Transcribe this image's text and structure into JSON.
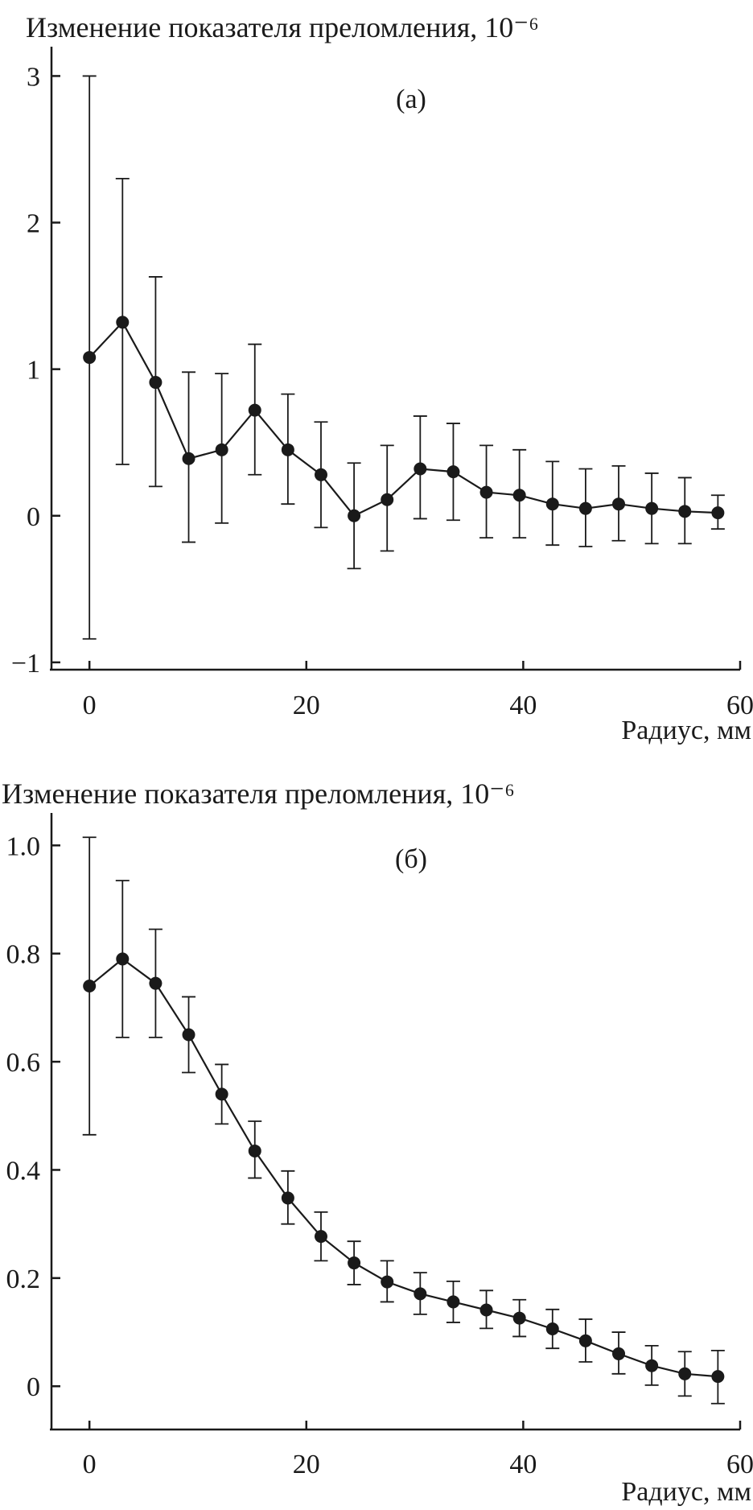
{
  "chart_data": [
    {
      "type": "line",
      "title": "Изменение показателя преломления, 10⁻⁶",
      "panel_label": "(а)",
      "xlabel": "Радиус, мм",
      "ylabel": "",
      "xlim": [
        -3.5,
        60
      ],
      "ylim": [
        -1.05,
        3.2
      ],
      "x_ticks": [
        0,
        20,
        40,
        60
      ],
      "x_tick_labels": [
        "0",
        "20",
        "40",
        "60"
      ],
      "y_ticks": [
        3,
        2,
        1,
        0,
        -1
      ],
      "y_tick_labels": [
        "3",
        "2",
        "1",
        "0",
        "−1"
      ],
      "grid": false,
      "series": [
        {
          "name": "(а)",
          "x": [
            0,
            3.05,
            6.1,
            9.15,
            12.2,
            15.25,
            18.3,
            21.35,
            24.4,
            27.45,
            30.5,
            33.55,
            36.6,
            39.65,
            42.7,
            45.75,
            48.8,
            51.85,
            54.9,
            57.95
          ],
          "values": [
            1.08,
            1.32,
            0.91,
            0.39,
            0.45,
            0.72,
            0.45,
            0.28,
            0.0,
            0.11,
            0.32,
            0.3,
            0.16,
            0.14,
            0.08,
            0.05,
            0.08,
            0.05,
            0.03,
            0.02
          ],
          "err_low": [
            -0.84,
            0.35,
            0.2,
            -0.18,
            -0.05,
            0.28,
            0.08,
            -0.08,
            -0.36,
            -0.24,
            -0.02,
            -0.03,
            -0.15,
            -0.15,
            -0.2,
            -0.21,
            -0.17,
            -0.19,
            -0.19,
            -0.09
          ],
          "err_high": [
            3.0,
            2.3,
            1.63,
            0.98,
            0.97,
            1.17,
            0.83,
            0.64,
            0.36,
            0.48,
            0.68,
            0.63,
            0.48,
            0.45,
            0.37,
            0.32,
            0.34,
            0.29,
            0.26,
            0.14
          ]
        }
      ]
    },
    {
      "type": "line",
      "title": "Изменение показателя преломления, 10⁻⁶",
      "panel_label": "(б)",
      "xlabel": "Радиус, мм",
      "ylabel": "",
      "xlim": [
        -3.5,
        60
      ],
      "ylim": [
        -0.08,
        1.06
      ],
      "x_ticks": [
        0,
        20,
        40,
        60
      ],
      "x_tick_labels": [
        "0",
        "20",
        "40",
        "60"
      ],
      "y_ticks": [
        1.0,
        0.8,
        0.6,
        0.4,
        0.2,
        0
      ],
      "y_tick_labels": [
        "1.0",
        "0.8",
        "0.6",
        "0.4",
        "0.2",
        "0"
      ],
      "grid": false,
      "series": [
        {
          "name": "(б)",
          "x": [
            0,
            3.05,
            6.1,
            9.15,
            12.2,
            15.25,
            18.3,
            21.35,
            24.4,
            27.45,
            30.5,
            33.55,
            36.6,
            39.65,
            42.7,
            45.75,
            48.8,
            51.85,
            54.9,
            57.95
          ],
          "values": [
            0.74,
            0.79,
            0.745,
            0.65,
            0.54,
            0.435,
            0.348,
            0.277,
            0.228,
            0.193,
            0.171,
            0.156,
            0.141,
            0.126,
            0.106,
            0.084,
            0.06,
            0.038,
            0.023,
            0.018
          ],
          "err_low": [
            0.465,
            0.645,
            0.645,
            0.58,
            0.485,
            0.385,
            0.3,
            0.232,
            0.188,
            0.156,
            0.133,
            0.118,
            0.107,
            0.092,
            0.07,
            0.045,
            0.023,
            0.002,
            -0.018,
            -0.032
          ],
          "err_high": [
            1.015,
            0.935,
            0.845,
            0.72,
            0.595,
            0.49,
            0.398,
            0.322,
            0.268,
            0.232,
            0.21,
            0.194,
            0.177,
            0.16,
            0.142,
            0.124,
            0.1,
            0.075,
            0.064,
            0.066
          ]
        }
      ]
    }
  ]
}
